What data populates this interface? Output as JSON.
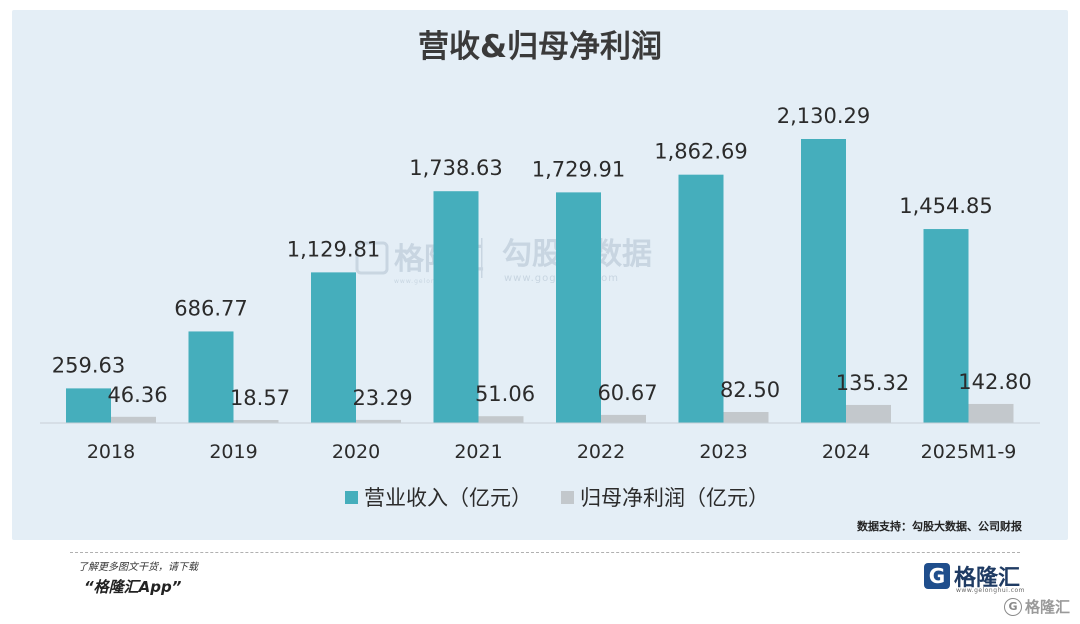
{
  "chart_data": {
    "type": "bar",
    "title": "营收&归母净利润",
    "categories": [
      "2018",
      "2019",
      "2020",
      "2021",
      "2022",
      "2023",
      "2024",
      "2025M1-9"
    ],
    "series": [
      {
        "name": "营业收入（亿元）",
        "color": "#45aebc",
        "values": [
          259.63,
          686.77,
          1129.81,
          1738.63,
          1729.91,
          1862.69,
          2130.29,
          1454.85
        ],
        "labels": [
          "259.63",
          "686.77",
          "1,129.81",
          "1,738.63",
          "1,729.91",
          "1,862.69",
          "2,130.29",
          "1,454.85"
        ]
      },
      {
        "name": "归母净利润（亿元）",
        "color": "#c3c8cc",
        "values": [
          46.36,
          18.57,
          23.29,
          51.06,
          60.67,
          82.5,
          135.32,
          142.8
        ],
        "labels": [
          "46.36",
          "18.57",
          "23.29",
          "51.06",
          "60.67",
          "82.50",
          "135.32",
          "142.80"
        ]
      }
    ],
    "ylim": [
      0,
      2130.29
    ],
    "grid": false,
    "legend_position": "bottom",
    "source": "数据支持：勾股大数据、公司财报"
  },
  "watermark": {
    "brand": "格隆汇",
    "brand_url": "www.gelonghui.com",
    "partner": "勾股大数据",
    "partner_url": "www.gogudata.com"
  },
  "footer": {
    "line1": "了解更多图文干货，请下载",
    "line2": "“格隆汇App”",
    "brand_name": "格隆汇",
    "brand_url": "www.gelonghui.com",
    "corner_watermark": "格隆汇"
  }
}
